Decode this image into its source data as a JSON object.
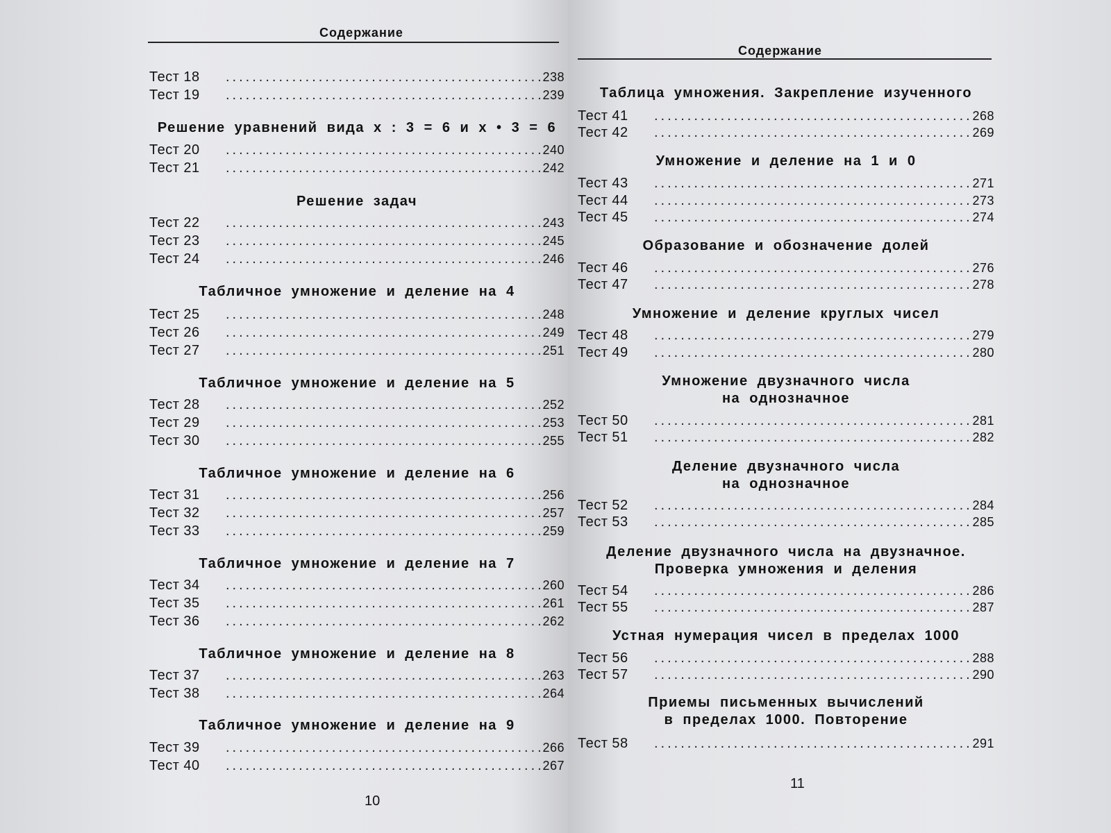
{
  "left": {
    "header": "Содержание",
    "page_number": "10",
    "blocks": [
      {
        "rows": [
          [
            "Тест 18",
            "238"
          ],
          [
            "Тест 19",
            "239"
          ]
        ]
      },
      {
        "title": "Решение уравнений вида x : 3 = 6 и x • 3 = 6",
        "rows": [
          [
            "Тест 20",
            "240"
          ],
          [
            "Тест 21",
            "242"
          ]
        ]
      },
      {
        "title": "Решение задач",
        "rows": [
          [
            "Тест 22",
            "243"
          ],
          [
            "Тест 23",
            "245"
          ],
          [
            "Тест 24",
            "246"
          ]
        ]
      },
      {
        "title": "Табличное умножение и деление на 4",
        "rows": [
          [
            "Тест 25",
            "248"
          ],
          [
            "Тест 26",
            "249"
          ],
          [
            "Тест 27",
            "251"
          ]
        ]
      },
      {
        "title": "Табличное умножение и деление на 5",
        "rows": [
          [
            "Тест 28",
            "252"
          ],
          [
            "Тест 29",
            "253"
          ],
          [
            "Тест 30",
            "255"
          ]
        ]
      },
      {
        "title": "Табличное умножение и деление на 6",
        "rows": [
          [
            "Тест 31",
            "256"
          ],
          [
            "Тест 32",
            "257"
          ],
          [
            "Тест 33",
            "259"
          ]
        ]
      },
      {
        "title": "Табличное умножение и деление на 7",
        "rows": [
          [
            "Тест 34",
            "260"
          ],
          [
            "Тест 35",
            "261"
          ],
          [
            "Тест 36",
            "262"
          ]
        ]
      },
      {
        "title": "Табличное умножение и деление на 8",
        "rows": [
          [
            "Тест 37",
            "263"
          ],
          [
            "Тест 38",
            "264"
          ]
        ]
      },
      {
        "title": "Табличное умножение и деление на 9",
        "rows": [
          [
            "Тест 39",
            "266"
          ],
          [
            "Тест 40",
            "267"
          ]
        ]
      }
    ]
  },
  "right": {
    "header": "Содержание",
    "page_number": "11",
    "blocks": [
      {
        "title": "Таблица умножения. Закрепление изученного",
        "rows": [
          [
            "Тест 41",
            "268"
          ],
          [
            "Тест 42",
            "269"
          ]
        ]
      },
      {
        "title": "Умножение и деление на 1 и 0",
        "rows": [
          [
            "Тест 43",
            "271"
          ],
          [
            "Тест 44",
            "273"
          ],
          [
            "Тест 45",
            "274"
          ]
        ]
      },
      {
        "title": "Образование и обозначение долей",
        "rows": [
          [
            "Тест 46",
            "276"
          ],
          [
            "Тест 47",
            "278"
          ]
        ]
      },
      {
        "title": "Умножение и деление круглых чисел",
        "rows": [
          [
            "Тест 48",
            "279"
          ],
          [
            "Тест 49",
            "280"
          ]
        ]
      },
      {
        "title": "Умножение двузначного числа\nна однозначное",
        "rows": [
          [
            "Тест 50",
            "281"
          ],
          [
            "Тест 51",
            "282"
          ]
        ]
      },
      {
        "title": "Деление двузначного числа\nна однозначное",
        "rows": [
          [
            "Тест 52",
            "284"
          ],
          [
            "Тест 53",
            "285"
          ]
        ]
      },
      {
        "title": "Деление двузначного числа на двузначное.\nПроверка умножения и деления",
        "rows": [
          [
            "Тест 54",
            "286"
          ],
          [
            "Тест 55",
            "287"
          ]
        ]
      },
      {
        "title": "Устная нумерация чисел в пределах 1000",
        "rows": [
          [
            "Тест 56",
            "288"
          ],
          [
            "Тест 57",
            "290"
          ]
        ]
      },
      {
        "title": "Приемы письменных вычислений\nв пределах 1000. Повторение",
        "rows": [
          [
            "Тест 58",
            "291"
          ]
        ]
      }
    ]
  }
}
